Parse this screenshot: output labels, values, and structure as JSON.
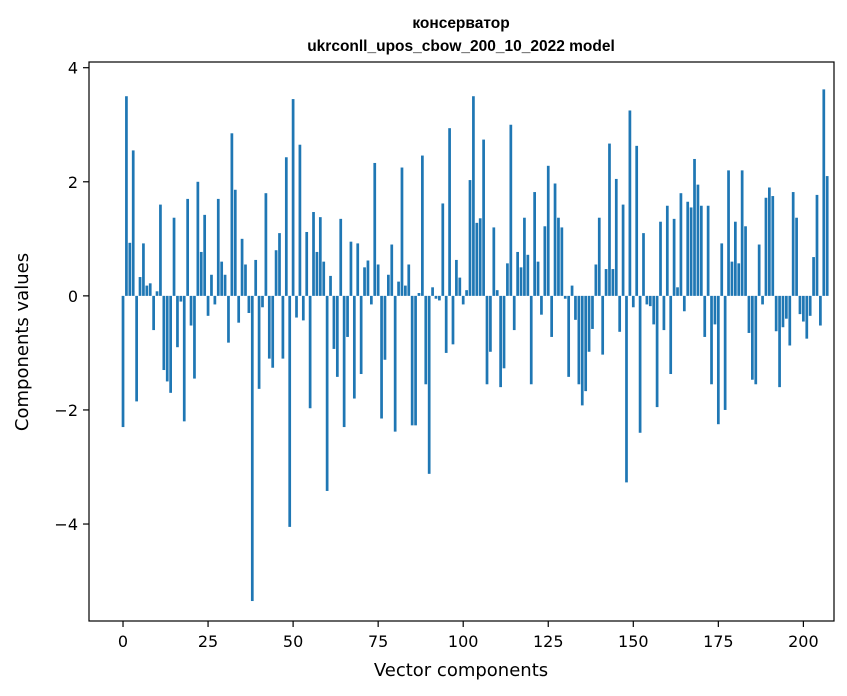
{
  "chart_data": {
    "type": "bar",
    "title": "консерватор",
    "subtitle": "ukrconll_upos_cbow_200_10_2022 model",
    "xlabel": "Vector components",
    "ylabel": "Components values",
    "xlim": [
      -10,
      209
    ],
    "ylim": [
      -5.7,
      4.1
    ],
    "xticks": [
      0,
      25,
      50,
      75,
      100,
      125,
      150,
      175,
      200
    ],
    "yticks": [
      -4,
      -2,
      0,
      2,
      4
    ],
    "xtick_labels": [
      "0",
      "25",
      "50",
      "75",
      "100",
      "125",
      "150",
      "175",
      "200"
    ],
    "ytick_labels": [
      "−4",
      "−2",
      "0",
      "2",
      "4"
    ],
    "bar_color": "#1f77b4",
    "values": [
      -2.3,
      3.5,
      0.93,
      2.55,
      -1.85,
      0.33,
      0.92,
      0.18,
      0.22,
      -0.6,
      0.08,
      1.6,
      -1.3,
      -1.5,
      -1.7,
      1.37,
      -0.9,
      -0.1,
      -2.2,
      1.7,
      -0.52,
      -1.45,
      2.0,
      0.77,
      1.42,
      -0.35,
      0.37,
      -0.15,
      1.7,
      0.6,
      0.37,
      -0.82,
      2.85,
      1.86,
      -0.47,
      1.0,
      0.55,
      -0.3,
      -5.35,
      0.63,
      -1.63,
      -0.2,
      1.8,
      -1.1,
      -1.26,
      0.8,
      1.1,
      -1.1,
      2.43,
      -4.05,
      3.45,
      -0.38,
      2.65,
      -0.43,
      1.12,
      -1.97,
      1.47,
      0.77,
      1.38,
      0.6,
      -3.42,
      0.35,
      -0.93,
      -1.42,
      1.35,
      -2.3,
      -0.72,
      0.95,
      -1.8,
      0.92,
      -1.37,
      0.5,
      0.62,
      -0.15,
      2.33,
      0.55,
      -2.15,
      -1.12,
      0.37,
      0.9,
      -2.38,
      0.25,
      2.25,
      0.18,
      0.55,
      -2.27,
      -2.27,
      0.05,
      2.46,
      -1.55,
      -3.12,
      0.15,
      -0.05,
      -0.08,
      1.62,
      -1.0,
      2.94,
      -0.85,
      0.63,
      0.32,
      -0.15,
      0.1,
      2.03,
      3.5,
      1.28,
      1.36,
      2.74,
      -1.55,
      -0.98,
      1.2,
      0.1,
      -1.6,
      -1.27,
      0.57,
      3.0,
      -0.6,
      0.77,
      0.5,
      1.37,
      0.72,
      -1.55,
      1.82,
      0.6,
      -0.33,
      1.22,
      2.28,
      -0.72,
      1.97,
      1.37,
      1.2,
      -0.05,
      -1.42,
      0.18,
      -0.42,
      -1.55,
      -1.92,
      -1.67,
      -0.98,
      -0.58,
      0.55,
      1.37,
      -1.03,
      0.47,
      2.67,
      0.47,
      2.05,
      -0.63,
      1.6,
      -3.27,
      3.25,
      -0.2,
      2.63,
      -2.4,
      1.1,
      -0.15,
      -0.18,
      -0.5,
      -1.95,
      1.3,
      -0.6,
      1.58,
      -1.37,
      1.35,
      0.15,
      1.8,
      -0.27,
      1.65,
      1.55,
      2.4,
      1.95,
      1.58,
      -0.72,
      1.58,
      -1.55,
      -0.5,
      -2.25,
      0.92,
      -2.0,
      2.2,
      0.6,
      1.3,
      0.57,
      2.2,
      1.22,
      -0.65,
      -1.47,
      -1.55,
      0.9,
      -0.15,
      1.72,
      1.9,
      1.75,
      -0.62,
      -1.6,
      -0.55,
      -0.4,
      -0.87,
      1.82,
      1.37,
      -0.32,
      -0.45,
      -0.75,
      -0.35,
      0.68,
      1.77,
      -0.52,
      3.62,
      2.1
    ]
  }
}
